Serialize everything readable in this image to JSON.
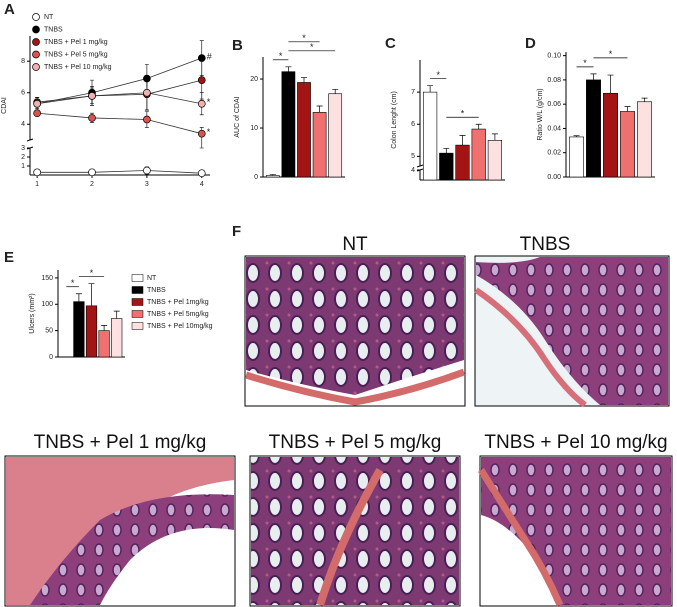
{
  "chart_data": [
    {
      "type": "line",
      "panel_label": "A",
      "ylabel": "CDAI",
      "x": [
        1,
        2,
        3,
        4
      ],
      "xlim": [
        0.87,
        4.15
      ],
      "xticks": [
        1,
        2,
        3,
        4
      ],
      "ylim": [
        0,
        9.6
      ],
      "ybreak": [
        3,
        3
      ],
      "yticks": [
        1,
        2,
        3,
        4,
        6,
        8
      ],
      "series": [
        {
          "name": "NT",
          "color": "#ffffff",
          "values": [
            0.3,
            0.3,
            0.5,
            0.2
          ],
          "errors": [
            0.1,
            0.2,
            0.4,
            0.2
          ],
          "point_labels": [
            null,
            null,
            null,
            null
          ]
        },
        {
          "name": "TNBS",
          "color": "#000000",
          "values": [
            5.3,
            6.0,
            6.9,
            8.2
          ],
          "errors": [
            0.4,
            0.8,
            0.9,
            1.1
          ],
          "point_labels": [
            null,
            null,
            null,
            "#"
          ]
        },
        {
          "name": "TNBS + Pel 1 mg/kg",
          "color": "#a31515",
          "values": [
            5.4,
            5.8,
            5.9,
            6.8
          ],
          "errors": [
            0.3,
            0.5,
            1.0,
            1.2
          ],
          "point_labels": [
            null,
            null,
            null,
            null
          ]
        },
        {
          "name": "TNBS + Pel 5 mg/kg",
          "color": "#d9534f",
          "values": [
            4.7,
            4.4,
            4.3,
            3.4
          ],
          "errors": [
            0.2,
            0.3,
            0.5,
            0.4
          ],
          "point_labels": [
            null,
            null,
            null,
            "*"
          ]
        },
        {
          "name": "TNBS + Pel 10 mg/kg",
          "color": "#f4b0b0",
          "values": [
            5.3,
            5.8,
            6.0,
            5.3
          ],
          "errors": [
            0.3,
            0.6,
            1.1,
            0.7
          ],
          "point_labels": [
            null,
            null,
            null,
            "*"
          ]
        }
      ],
      "legend": "top-left"
    },
    {
      "type": "bar",
      "panel_label": "B",
      "ylabel": "AUC of CDAI",
      "categories": [
        null,
        null,
        null,
        null,
        null
      ],
      "values": [
        0.3,
        21.5,
        19.3,
        13.2,
        17.0
      ],
      "errors": [
        0.2,
        1.0,
        1.0,
        1.3,
        0.9
      ],
      "colors": [
        "#ffffff",
        "#000000",
        "#a31515",
        "#f07070",
        "#fde0e0"
      ],
      "ylim": [
        0,
        24.5
      ],
      "yticks": [
        0,
        10,
        20
      ],
      "significance": [
        {
          "from": 0,
          "to": 1,
          "label": "*"
        },
        {
          "from": 1,
          "to": 4,
          "label": "*"
        },
        {
          "from": 1,
          "to": 3,
          "label": "*"
        }
      ]
    },
    {
      "type": "bar",
      "panel_label": "C",
      "ylabel": "Colon Lenght (cm)",
      "categories": [
        null,
        null,
        null,
        null,
        null
      ],
      "values": [
        7.0,
        5.1,
        5.35,
        5.85,
        5.5
      ],
      "errors": [
        0.2,
        0.15,
        0.3,
        0.15,
        0.2
      ],
      "colors": [
        "#ffffff",
        "#000000",
        "#a31515",
        "#f07070",
        "#fde0e0"
      ],
      "ylim": [
        0,
        8.0
      ],
      "ybreak": [
        4,
        4.7
      ],
      "yticks": [
        4,
        5,
        6,
        7
      ],
      "significance": [
        {
          "from": 0,
          "to": 1,
          "label": "*"
        },
        {
          "from": 1,
          "to": 3,
          "label": "*"
        }
      ]
    },
    {
      "type": "bar",
      "panel_label": "D",
      "ylabel": "Ratio W/L (g/cm)",
      "categories": [
        null,
        null,
        null,
        null,
        null
      ],
      "values": [
        0.033,
        0.08,
        0.069,
        0.054,
        0.062
      ],
      "errors": [
        0.001,
        0.005,
        0.015,
        0.004,
        0.003
      ],
      "colors": [
        "#ffffff",
        "#000000",
        "#a31515",
        "#f07070",
        "#fde0e0"
      ],
      "ylim": [
        0,
        0.103
      ],
      "yticks": [
        {
          "value": 0,
          "label": "0.00"
        },
        {
          "value": 0.02,
          "label": "0.02"
        },
        {
          "value": 0.04,
          "label": "0.04"
        },
        {
          "value": 0.06,
          "label": "0.06"
        },
        {
          "value": 0.08,
          "label": "0.08"
        },
        {
          "value": 0.1,
          "label": "0.10"
        }
      ],
      "significance": [
        {
          "from": 0,
          "to": 1,
          "label": "*"
        },
        {
          "from": 1,
          "to": 3,
          "label": "*"
        }
      ]
    },
    {
      "type": "bar",
      "panel_label": "E",
      "ylabel": "Ulcers (mm²)",
      "categories": [
        "NT",
        "TNBS",
        "TNBS + Pel 1mg/kg",
        "TNBS + Pel 5mg/kg",
        "TNBS + Pel 10mg/kg"
      ],
      "values": [
        0,
        105,
        97,
        50,
        73
      ],
      "errors": [
        0,
        15,
        42,
        10,
        14
      ],
      "colors": [
        "#ffffff",
        "#000000",
        "#a31515",
        "#f07070",
        "#fde0e0"
      ],
      "ylim": [
        0,
        165
      ],
      "yticks": [
        0,
        50,
        100,
        150
      ],
      "legend": "right",
      "significance": [
        {
          "from": 0,
          "to": 1,
          "label": "*"
        },
        {
          "from": 1,
          "to": 3,
          "label": "*"
        }
      ]
    }
  ],
  "panel_f": {
    "panel_label": "F",
    "images": [
      {
        "title": "NT"
      },
      {
        "title": "TNBS"
      },
      {
        "title": "TNBS + Pel 1 mg/kg"
      },
      {
        "title": "TNBS + Pel 5 mg/kg"
      },
      {
        "title": "TNBS + Pel 10 mg/kg"
      }
    ]
  }
}
